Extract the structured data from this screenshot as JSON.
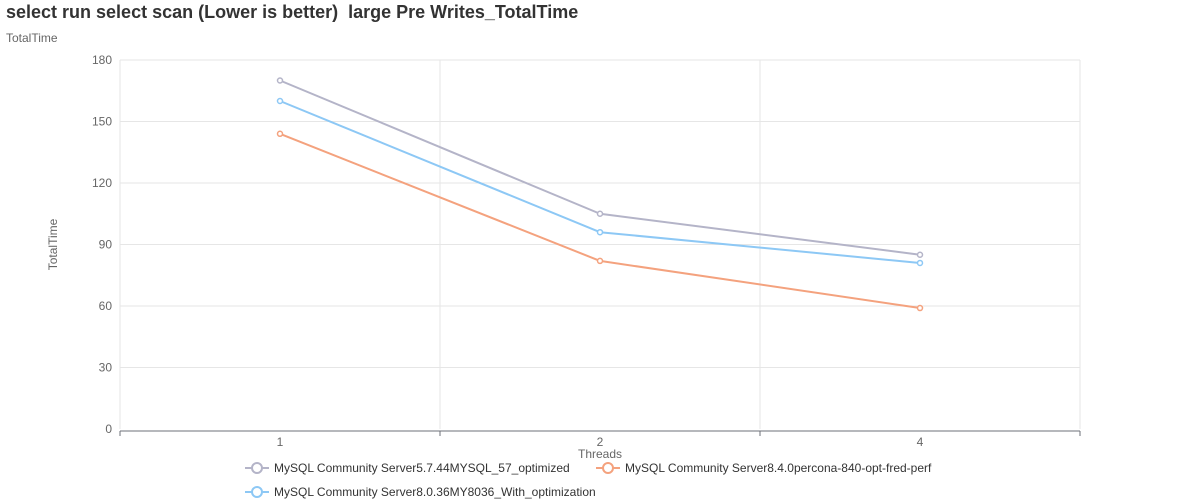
{
  "chart_data": {
    "type": "line",
    "title": "select run select scan (Lower is better)  large Pre Writes_TotalTime",
    "subtitle": "TotalTime",
    "xlabel": "Threads",
    "ylabel": "TotalTime",
    "categories": [
      "1",
      "2",
      "4"
    ],
    "ylim": [
      0,
      180
    ],
    "yticks": [
      0,
      30,
      60,
      90,
      120,
      150,
      180
    ],
    "grid": true,
    "legend_position": "bottom",
    "series": [
      {
        "name": "MySQL Community Server5.7.44MYSQL_57_optimized",
        "color": "#b4b4c8",
        "values": [
          170,
          105,
          85
        ]
      },
      {
        "name": "MySQL Community Server8.4.0percona-840-opt-fred-perf",
        "color": "#f4a27e",
        "values": [
          144,
          82,
          59
        ]
      },
      {
        "name": "MySQL Community Server8.0.36MY8036_With_optimization",
        "color": "#8dc8f5",
        "values": [
          160,
          96,
          81
        ]
      }
    ]
  }
}
